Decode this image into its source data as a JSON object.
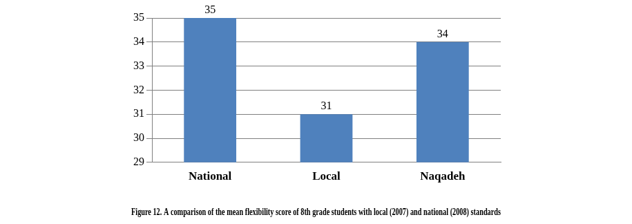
{
  "chart_data": {
    "type": "bar",
    "title": "Figure 12. A comparison of the mean flexibility score of 8th grade students with local (2007) and national (2008) standards",
    "categories": [
      "National",
      "Local",
      "Naqadeh"
    ],
    "values": [
      35,
      31,
      34
    ],
    "color": "#4f81bd",
    "ylim": [
      29,
      35
    ],
    "yticks": [
      29,
      30,
      31,
      32,
      33,
      34,
      35
    ],
    "grid": true,
    "data_labels": true
  }
}
